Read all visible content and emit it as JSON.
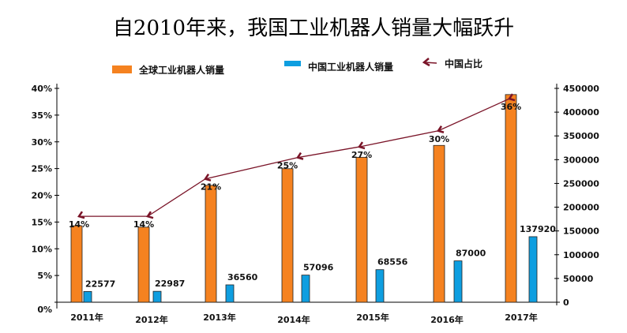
{
  "chart_data": {
    "type": "bar",
    "title": "自2010年来，我国工业机器人销量大幅跃升",
    "categories": [
      "2011年",
      "2012年",
      "2013年",
      "2014年",
      "2015年",
      "2016年",
      "2017年"
    ],
    "series": [
      {
        "name": "全球工业机器人销量",
        "type": "bar",
        "axis": "right",
        "color": "#f58220",
        "values": [
          161000,
          158000,
          246000,
          281000,
          305000,
          330000,
          437000
        ]
      },
      {
        "name": "中国工业机器人销量",
        "type": "bar",
        "axis": "right",
        "color": "#0e9ee0",
        "values": [
          22577,
          22987,
          36560,
          57096,
          68556,
          87000,
          137920
        ],
        "data_labels": [
          "22577",
          "22987",
          "36560",
          "57096",
          "68556",
          "87000",
          "137920"
        ]
      },
      {
        "name": "中国占比",
        "type": "line",
        "axis": "left",
        "color": "#7a1428",
        "values": [
          14,
          14,
          21,
          25,
          27,
          30,
          36
        ],
        "data_labels": [
          "14%",
          "14%",
          "21%",
          "25%",
          "27%",
          "30%",
          "36%"
        ]
      }
    ],
    "left_axis": {
      "ylim": [
        0,
        40
      ],
      "ticks": [
        "0%",
        "5%",
        "10%",
        "15%",
        "20%",
        "25%",
        "30%",
        "35%",
        "40%"
      ]
    },
    "right_axis": {
      "ylim": [
        0,
        450000
      ],
      "ticks": [
        "0",
        "50000",
        "100000",
        "150000",
        "200000",
        "250000",
        "300000",
        "350000",
        "400000",
        "450000"
      ]
    },
    "legend": "top",
    "grid": false
  }
}
